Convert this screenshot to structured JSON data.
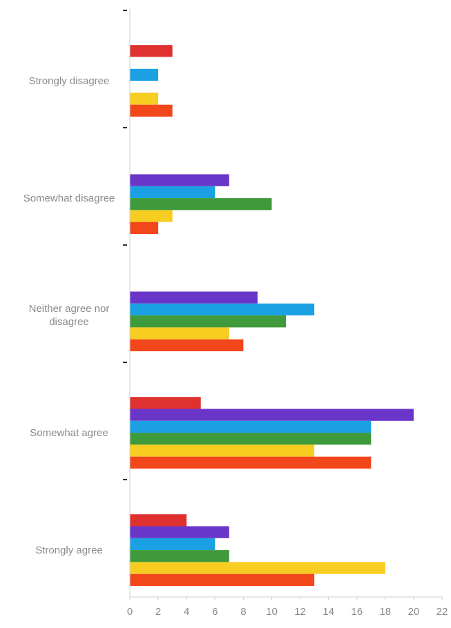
{
  "chart_data": {
    "type": "bar",
    "orientation": "horizontal",
    "title": "",
    "xlabel": "",
    "ylabel": "",
    "xlim": [
      0,
      22
    ],
    "x_ticks": [
      0,
      2,
      4,
      6,
      8,
      10,
      12,
      14,
      16,
      18,
      20,
      22
    ],
    "grid": false,
    "legend": "none",
    "categories": [
      "Strongly disagree",
      "Somewhat disagree",
      "Neither agree nor\ndisagree",
      "Somewhat agree",
      "Strongly agree"
    ],
    "series": [
      {
        "color": "#e03131",
        "values": [
          3,
          null,
          null,
          5,
          4
        ]
      },
      {
        "color": "#6a35c9",
        "values": [
          null,
          7,
          9,
          20,
          7
        ]
      },
      {
        "color": "#1ba1e3",
        "values": [
          2,
          6,
          13,
          17,
          6
        ]
      },
      {
        "color": "#3e9a3a",
        "values": [
          null,
          10,
          11,
          17,
          7
        ]
      },
      {
        "color": "#f7cd22",
        "values": [
          2,
          3,
          7,
          13,
          18
        ]
      },
      {
        "color": "#f2461b",
        "values": [
          3,
          2,
          8,
          17,
          13
        ]
      }
    ]
  }
}
